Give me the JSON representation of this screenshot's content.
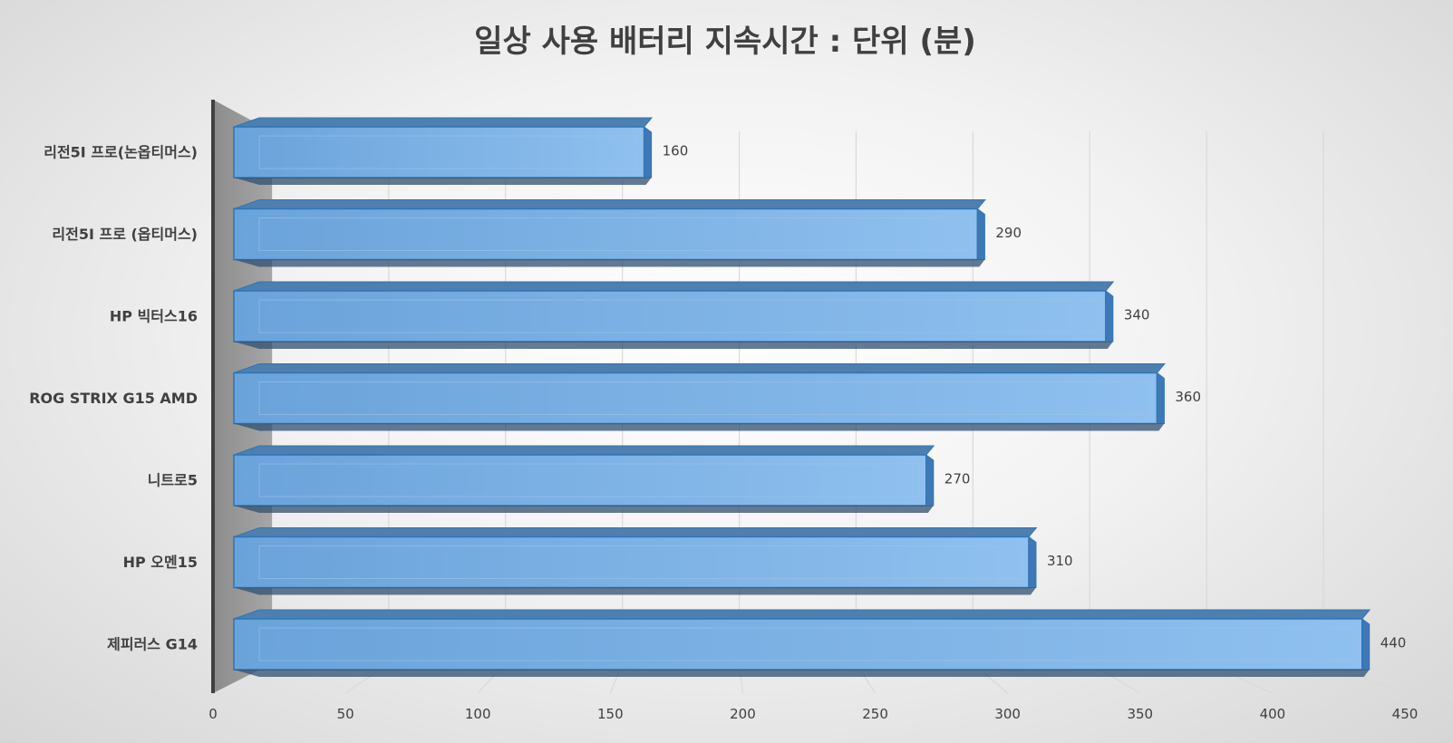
{
  "chart_data": {
    "type": "bar",
    "orientation": "horizontal",
    "title": "일상 사용 배터리 지속시간 : 단위 (분)",
    "categories": [
      "리전5I 프로(논옵티머스)",
      "리전5I 프로 (옵티머스)",
      "HP 빅터스16",
      "ROG STRIX G15 AMD",
      "니트로5",
      "HP 오멘15",
      "제피러스 G14"
    ],
    "values": [
      160,
      290,
      340,
      360,
      270,
      310,
      440
    ],
    "xlim": [
      0,
      450
    ],
    "xticks": [
      0,
      50,
      100,
      150,
      200,
      250,
      300,
      350,
      400,
      450
    ],
    "xlabel": "",
    "ylabel": "",
    "grid": true,
    "legend": "none",
    "bar_color": "#5b9bd5",
    "bar_edge_color": "#2e75b6"
  }
}
